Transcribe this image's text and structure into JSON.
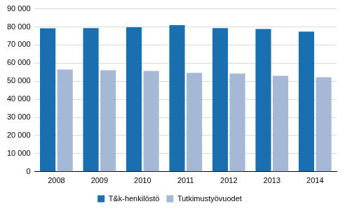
{
  "chart_data": {
    "type": "bar",
    "categories": [
      "2008",
      "2009",
      "2010",
      "2011",
      "2012",
      "2013",
      "2014"
    ],
    "series": [
      {
        "name": "T&k-henkilöstö",
        "color": "#1a6fb0",
        "values": [
          79200,
          79300,
          79800,
          81000,
          79300,
          78800,
          77400
        ]
      },
      {
        "name": "Tutkimustyövuodet",
        "color": "#a5b9d6",
        "values": [
          56500,
          56100,
          55700,
          54600,
          54200,
          53000,
          52200
        ]
      }
    ],
    "ylim": [
      0,
      90000
    ],
    "yticks": [
      0,
      {
        "value": 10000,
        "label": "10 000"
      },
      {
        "value": 20000,
        "label": "20 000"
      },
      {
        "value": 30000,
        "label": "30 000"
      },
      {
        "value": 40000,
        "label": "40 000"
      },
      {
        "value": 50000,
        "label": "50 000"
      },
      {
        "value": 60000,
        "label": "60 000"
      },
      {
        "value": 70000,
        "label": "70 000"
      },
      {
        "value": 80000,
        "label": "80 000"
      },
      {
        "value": 90000,
        "label": "90 000"
      }
    ],
    "grid": true,
    "legend": "bottom"
  }
}
